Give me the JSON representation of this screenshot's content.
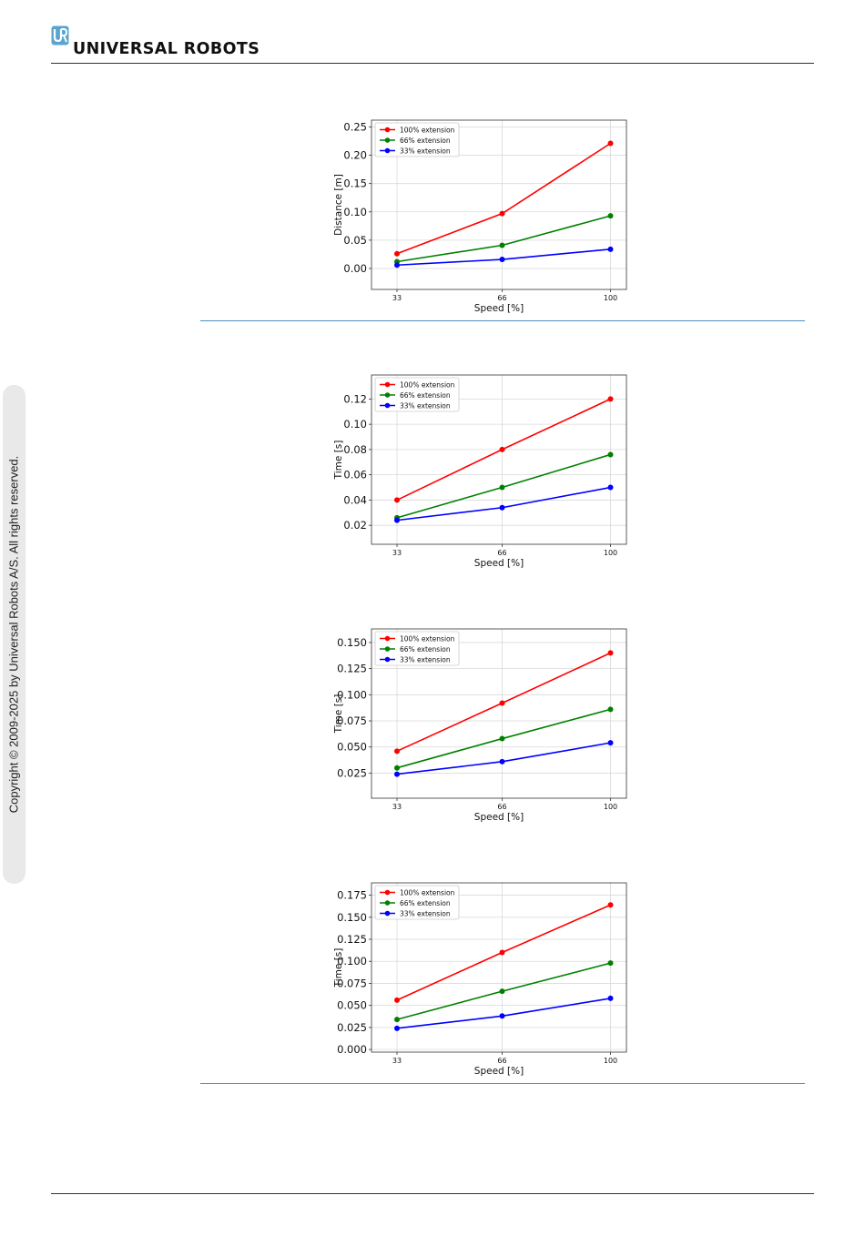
{
  "header": {
    "brand": "UNIVERSAL ROBOTS",
    "logo_icon": "ur-logo-icon",
    "accent": "#5ba4cf"
  },
  "sidebar": {
    "copyright": "Copyright © 2009-2025 by Universal Robots A/S. All rights reserved."
  },
  "chart_data": [
    {
      "type": "line",
      "x": [
        33,
        66,
        100
      ],
      "xticks": [
        "33",
        "66",
        "100"
      ],
      "xlabel": "Speed [%]",
      "ylabel": "Distance [m]",
      "ylim": [
        -0.037,
        0.262
      ],
      "yticks": [
        0.0,
        0.05,
        0.1,
        0.15,
        0.2,
        0.25
      ],
      "ytick_labels": [
        "0.00",
        "0.05",
        "0.10",
        "0.15",
        "0.20",
        "0.25"
      ],
      "grid": true,
      "legend": "top-left",
      "series": [
        {
          "name": "100% extension",
          "color": "#ff0000",
          "values": [
            0.026,
            0.097,
            0.221
          ]
        },
        {
          "name": "66% extension",
          "color": "#008000",
          "values": [
            0.012,
            0.041,
            0.093
          ]
        },
        {
          "name": "33% extension",
          "color": "#0000ff",
          "values": [
            0.006,
            0.016,
            0.034
          ]
        }
      ]
    },
    {
      "type": "line",
      "x": [
        33,
        66,
        100
      ],
      "xticks": [
        "33",
        "66",
        "100"
      ],
      "xlabel": "Speed [%]",
      "ylabel": "Time [s]",
      "ylim": [
        0.005,
        0.139
      ],
      "yticks": [
        0.02,
        0.04,
        0.06,
        0.08,
        0.1,
        0.12
      ],
      "ytick_labels": [
        "0.02",
        "0.04",
        "0.06",
        "0.08",
        "0.10",
        "0.12"
      ],
      "grid": true,
      "legend": "top-left",
      "series": [
        {
          "name": "100% extension",
          "color": "#ff0000",
          "values": [
            0.04,
            0.08,
            0.12
          ]
        },
        {
          "name": "66% extension",
          "color": "#008000",
          "values": [
            0.026,
            0.05,
            0.076
          ]
        },
        {
          "name": "33% extension",
          "color": "#0000ff",
          "values": [
            0.024,
            0.034,
            0.05
          ]
        }
      ]
    },
    {
      "type": "line",
      "x": [
        33,
        66,
        100
      ],
      "xticks": [
        "33",
        "66",
        "100"
      ],
      "xlabel": "Speed [%]",
      "ylabel": "Time [s]",
      "ylim": [
        0.001,
        0.163
      ],
      "yticks": [
        0.025,
        0.05,
        0.075,
        0.1,
        0.125,
        0.15
      ],
      "ytick_labels": [
        "0.025",
        "0.050",
        "0.075",
        "0.100",
        "0.125",
        "0.150"
      ],
      "grid": true,
      "legend": "top-left",
      "series": [
        {
          "name": "100% extension",
          "color": "#ff0000",
          "values": [
            0.046,
            0.092,
            0.14
          ]
        },
        {
          "name": "66% extension",
          "color": "#008000",
          "values": [
            0.03,
            0.058,
            0.086
          ]
        },
        {
          "name": "33% extension",
          "color": "#0000ff",
          "values": [
            0.024,
            0.036,
            0.054
          ]
        }
      ]
    },
    {
      "type": "line",
      "x": [
        33,
        66,
        100
      ],
      "xticks": [
        "33",
        "66",
        "100"
      ],
      "xlabel": "Speed [%]",
      "ylabel": "Time [s]",
      "ylim": [
        -0.003,
        0.189
      ],
      "yticks": [
        0.0,
        0.025,
        0.05,
        0.075,
        0.1,
        0.125,
        0.15,
        0.175
      ],
      "ytick_labels": [
        "0.000",
        "0.025",
        "0.050",
        "0.075",
        "0.100",
        "0.125",
        "0.150",
        "0.175"
      ],
      "grid": true,
      "legend": "top-left",
      "series": [
        {
          "name": "100% extension",
          "color": "#ff0000",
          "values": [
            0.056,
            0.11,
            0.164
          ]
        },
        {
          "name": "66% extension",
          "color": "#008000",
          "values": [
            0.034,
            0.066,
            0.098
          ]
        },
        {
          "name": "33% extension",
          "color": "#0000ff",
          "values": [
            0.024,
            0.038,
            0.058
          ]
        }
      ]
    }
  ]
}
